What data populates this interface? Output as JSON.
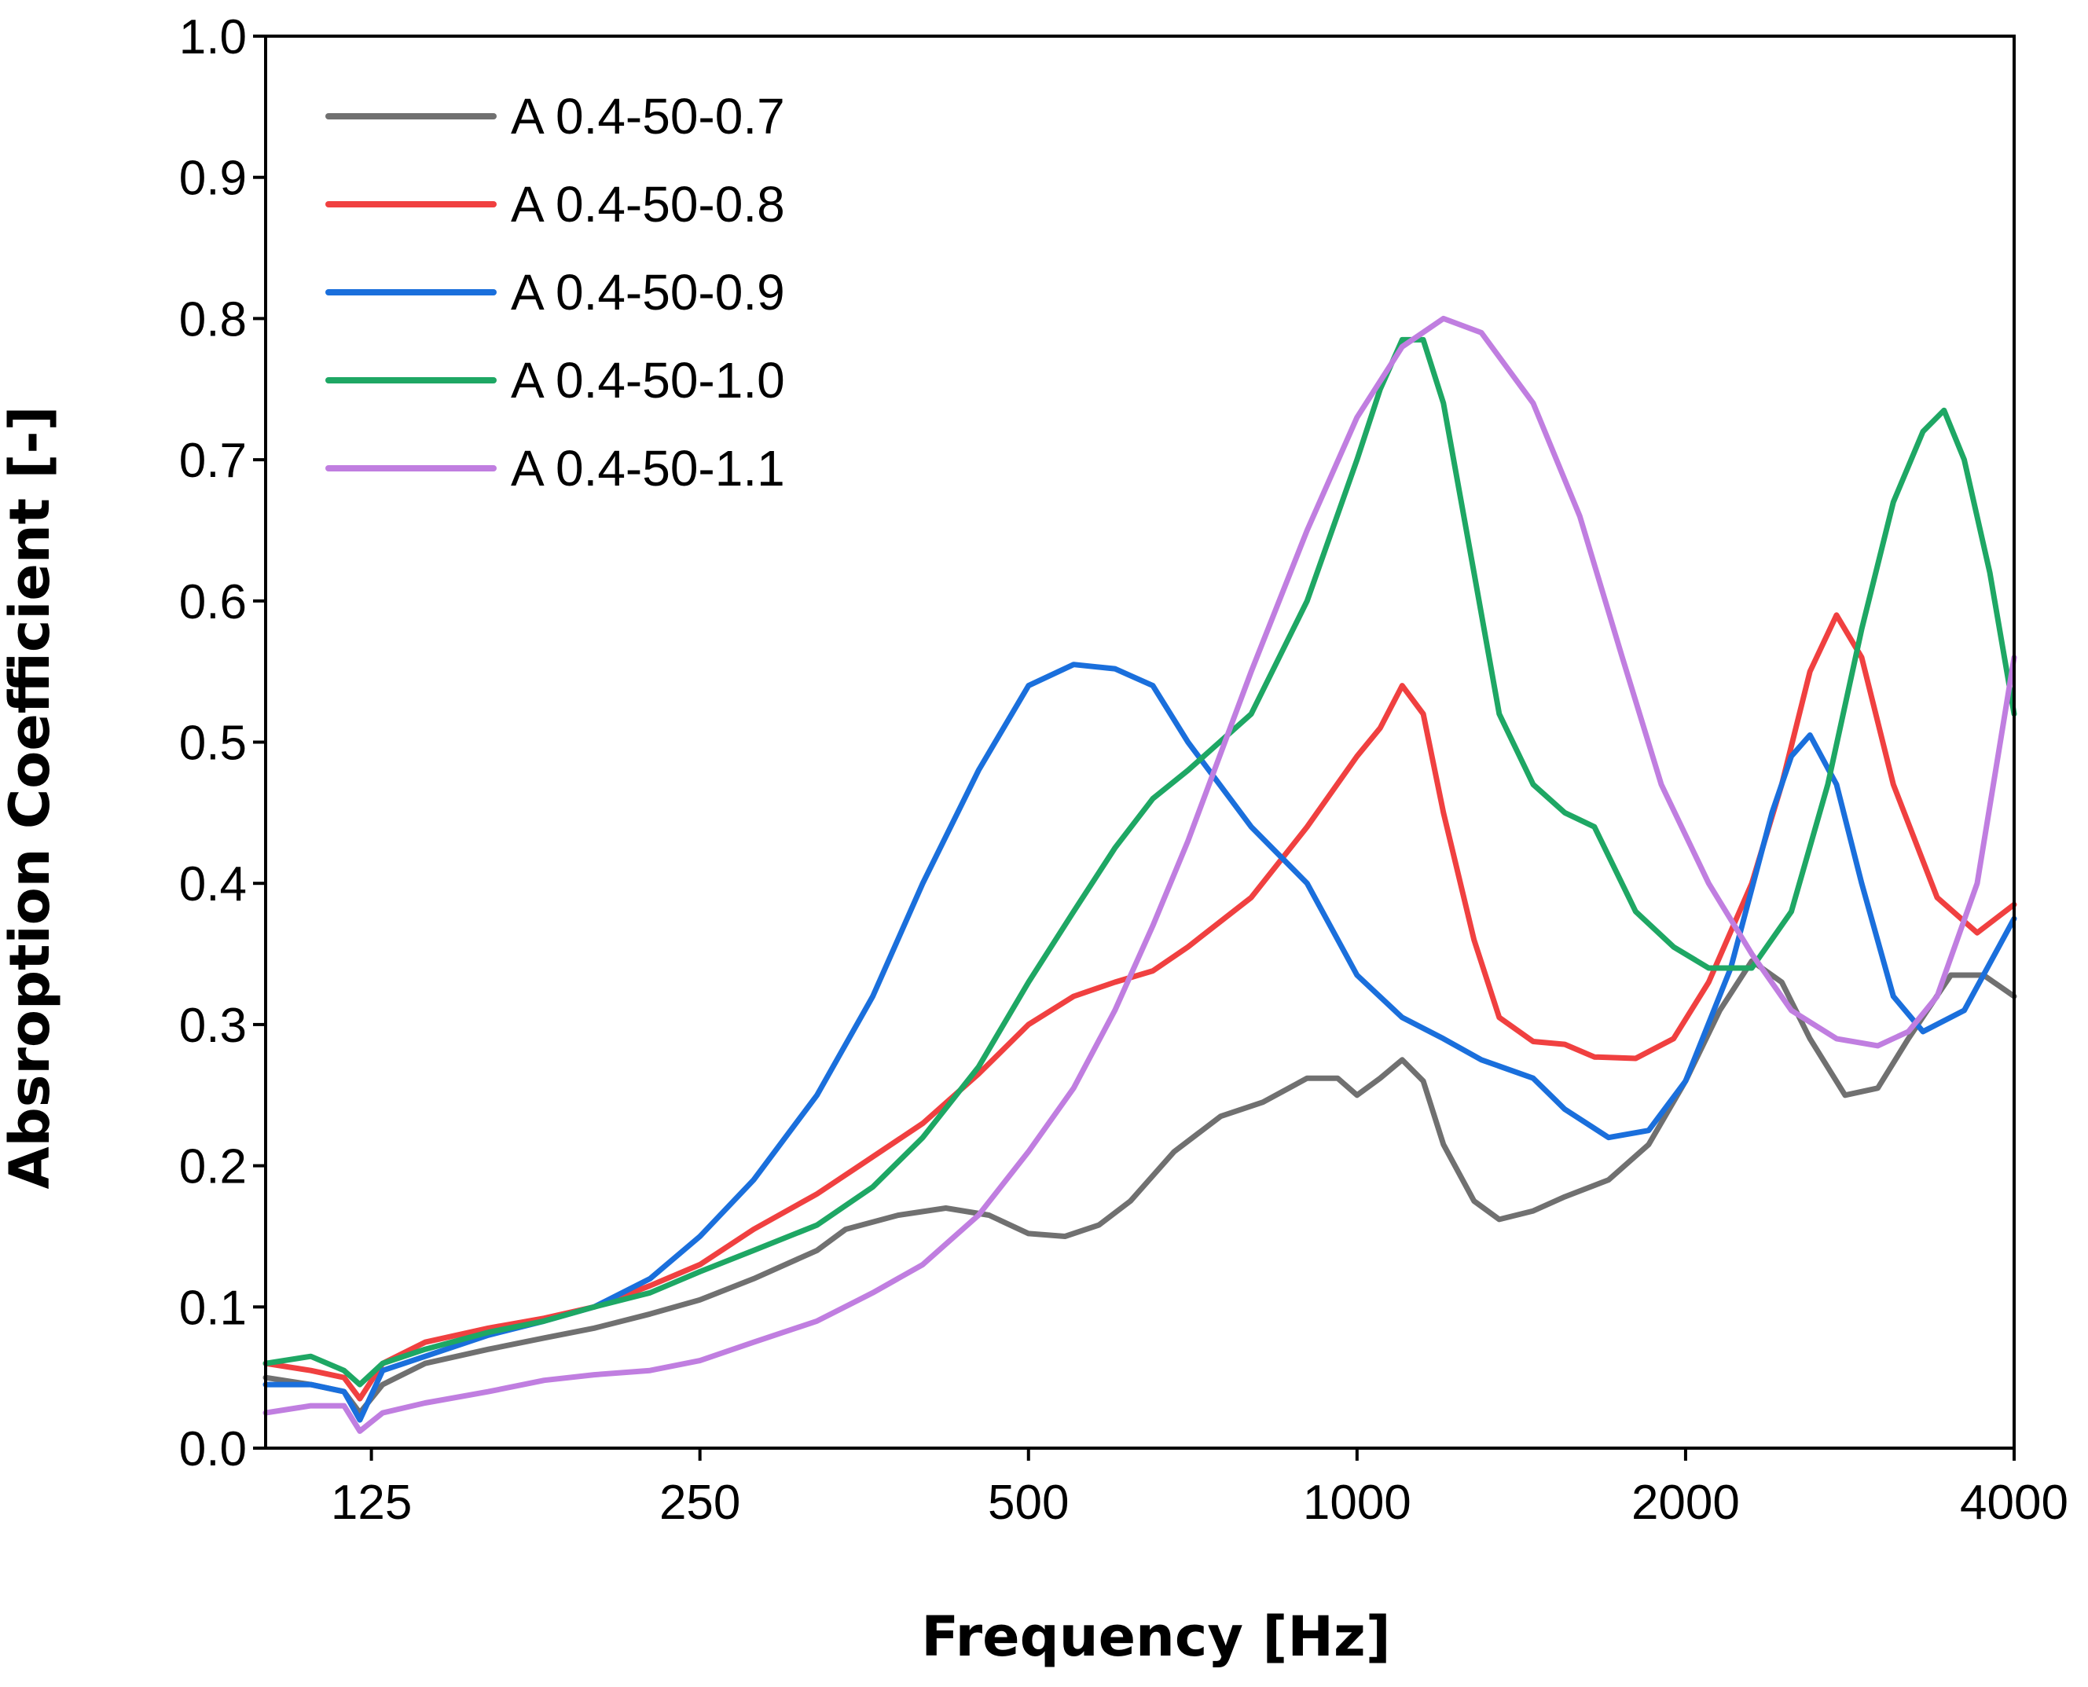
{
  "chart_data": {
    "type": "line",
    "title": "",
    "xlabel": "Frequency [Hz]",
    "ylabel": "Absroption Coefficient [-]",
    "xscale": "log2",
    "xlim": [
      100,
      4000
    ],
    "ylim": [
      0.0,
      1.0
    ],
    "xticks": [
      125,
      250,
      500,
      1000,
      2000,
      4000
    ],
    "xtick_labels": [
      "125",
      "250",
      "500",
      "1000",
      "2000",
      "4000"
    ],
    "yticks": [
      0.0,
      0.1,
      0.2,
      0.3,
      0.4,
      0.5,
      0.6,
      0.7,
      0.8,
      0.9,
      1.0
    ],
    "ytick_labels": [
      "0.0",
      "0.1",
      "0.2",
      "0.3",
      "0.4",
      "0.5",
      "0.6",
      "0.7",
      "0.8",
      "0.9",
      "1.0"
    ],
    "grid": false,
    "legend_position": "top-left",
    "series": [
      {
        "name": "A 0.4-50-0.7",
        "color": "#707070",
        "points": [
          [
            100,
            0.05
          ],
          [
            110,
            0.045
          ],
          [
            118,
            0.04
          ],
          [
            122,
            0.025
          ],
          [
            128,
            0.045
          ],
          [
            140,
            0.06
          ],
          [
            160,
            0.07
          ],
          [
            180,
            0.078
          ],
          [
            200,
            0.085
          ],
          [
            225,
            0.095
          ],
          [
            250,
            0.105
          ],
          [
            280,
            0.12
          ],
          [
            320,
            0.14
          ],
          [
            340,
            0.155
          ],
          [
            380,
            0.165
          ],
          [
            420,
            0.17
          ],
          [
            460,
            0.165
          ],
          [
            500,
            0.152
          ],
          [
            540,
            0.15
          ],
          [
            580,
            0.158
          ],
          [
            620,
            0.175
          ],
          [
            680,
            0.21
          ],
          [
            750,
            0.235
          ],
          [
            820,
            0.245
          ],
          [
            900,
            0.262
          ],
          [
            960,
            0.262
          ],
          [
            1000,
            0.25
          ],
          [
            1050,
            0.262
          ],
          [
            1100,
            0.275
          ],
          [
            1150,
            0.26
          ],
          [
            1200,
            0.215
          ],
          [
            1280,
            0.175
          ],
          [
            1350,
            0.162
          ],
          [
            1450,
            0.168
          ],
          [
            1550,
            0.178
          ],
          [
            1700,
            0.19
          ],
          [
            1850,
            0.215
          ],
          [
            2000,
            0.26
          ],
          [
            2150,
            0.31
          ],
          [
            2300,
            0.345
          ],
          [
            2450,
            0.33
          ],
          [
            2600,
            0.29
          ],
          [
            2800,
            0.25
          ],
          [
            3000,
            0.255
          ],
          [
            3200,
            0.29
          ],
          [
            3500,
            0.335
          ],
          [
            3750,
            0.335
          ],
          [
            4000,
            0.32
          ]
        ]
      },
      {
        "name": "A 0.4-50-0.8",
        "color": "#f04040",
        "points": [
          [
            100,
            0.06
          ],
          [
            110,
            0.055
          ],
          [
            118,
            0.05
          ],
          [
            122,
            0.035
          ],
          [
            128,
            0.06
          ],
          [
            140,
            0.075
          ],
          [
            160,
            0.085
          ],
          [
            180,
            0.092
          ],
          [
            200,
            0.1
          ],
          [
            225,
            0.115
          ],
          [
            250,
            0.13
          ],
          [
            280,
            0.155
          ],
          [
            320,
            0.18
          ],
          [
            350,
            0.2
          ],
          [
            400,
            0.23
          ],
          [
            450,
            0.265
          ],
          [
            500,
            0.3
          ],
          [
            550,
            0.32
          ],
          [
            600,
            0.33
          ],
          [
            650,
            0.338
          ],
          [
            700,
            0.355
          ],
          [
            800,
            0.39
          ],
          [
            900,
            0.44
          ],
          [
            1000,
            0.49
          ],
          [
            1050,
            0.51
          ],
          [
            1100,
            0.54
          ],
          [
            1150,
            0.52
          ],
          [
            1200,
            0.45
          ],
          [
            1280,
            0.36
          ],
          [
            1350,
            0.305
          ],
          [
            1450,
            0.288
          ],
          [
            1550,
            0.286
          ],
          [
            1650,
            0.277
          ],
          [
            1800,
            0.276
          ],
          [
            1950,
            0.29
          ],
          [
            2100,
            0.33
          ],
          [
            2300,
            0.4
          ],
          [
            2450,
            0.47
          ],
          [
            2600,
            0.55
          ],
          [
            2750,
            0.59
          ],
          [
            2900,
            0.56
          ],
          [
            3100,
            0.47
          ],
          [
            3400,
            0.39
          ],
          [
            3700,
            0.365
          ],
          [
            4000,
            0.385
          ]
        ]
      },
      {
        "name": "A 0.4-50-0.9",
        "color": "#1a6fdc",
        "points": [
          [
            100,
            0.045
          ],
          [
            110,
            0.045
          ],
          [
            118,
            0.04
          ],
          [
            122,
            0.02
          ],
          [
            128,
            0.055
          ],
          [
            140,
            0.065
          ],
          [
            160,
            0.08
          ],
          [
            180,
            0.09
          ],
          [
            200,
            0.1
          ],
          [
            225,
            0.12
          ],
          [
            250,
            0.15
          ],
          [
            280,
            0.19
          ],
          [
            320,
            0.25
          ],
          [
            360,
            0.32
          ],
          [
            400,
            0.4
          ],
          [
            450,
            0.48
          ],
          [
            500,
            0.54
          ],
          [
            550,
            0.555
          ],
          [
            600,
            0.552
          ],
          [
            650,
            0.54
          ],
          [
            700,
            0.5
          ],
          [
            800,
            0.44
          ],
          [
            900,
            0.4
          ],
          [
            1000,
            0.335
          ],
          [
            1100,
            0.305
          ],
          [
            1200,
            0.29
          ],
          [
            1300,
            0.275
          ],
          [
            1450,
            0.262
          ],
          [
            1550,
            0.24
          ],
          [
            1700,
            0.22
          ],
          [
            1850,
            0.225
          ],
          [
            2000,
            0.26
          ],
          [
            2200,
            0.34
          ],
          [
            2400,
            0.45
          ],
          [
            2500,
            0.49
          ],
          [
            2600,
            0.505
          ],
          [
            2750,
            0.47
          ],
          [
            2900,
            0.4
          ],
          [
            3100,
            0.32
          ],
          [
            3300,
            0.295
          ],
          [
            3600,
            0.31
          ],
          [
            4000,
            0.375
          ]
        ]
      },
      {
        "name": "A 0.4-50-1.0",
        "color": "#1ea764",
        "points": [
          [
            100,
            0.06
          ],
          [
            110,
            0.065
          ],
          [
            118,
            0.055
          ],
          [
            122,
            0.045
          ],
          [
            128,
            0.06
          ],
          [
            140,
            0.07
          ],
          [
            160,
            0.082
          ],
          [
            180,
            0.09
          ],
          [
            200,
            0.1
          ],
          [
            225,
            0.11
          ],
          [
            250,
            0.125
          ],
          [
            280,
            0.14
          ],
          [
            320,
            0.158
          ],
          [
            360,
            0.185
          ],
          [
            400,
            0.22
          ],
          [
            450,
            0.27
          ],
          [
            500,
            0.33
          ],
          [
            550,
            0.38
          ],
          [
            600,
            0.425
          ],
          [
            650,
            0.46
          ],
          [
            700,
            0.48
          ],
          [
            800,
            0.52
          ],
          [
            900,
            0.6
          ],
          [
            1000,
            0.7
          ],
          [
            1050,
            0.75
          ],
          [
            1100,
            0.785
          ],
          [
            1150,
            0.785
          ],
          [
            1200,
            0.74
          ],
          [
            1280,
            0.62
          ],
          [
            1350,
            0.52
          ],
          [
            1450,
            0.47
          ],
          [
            1550,
            0.45
          ],
          [
            1650,
            0.44
          ],
          [
            1800,
            0.38
          ],
          [
            1950,
            0.355
          ],
          [
            2100,
            0.34
          ],
          [
            2300,
            0.34
          ],
          [
            2500,
            0.38
          ],
          [
            2700,
            0.47
          ],
          [
            2900,
            0.58
          ],
          [
            3100,
            0.67
          ],
          [
            3300,
            0.72
          ],
          [
            3450,
            0.735
          ],
          [
            3600,
            0.7
          ],
          [
            3800,
            0.62
          ],
          [
            4000,
            0.52
          ]
        ]
      },
      {
        "name": "A 0.4-50-1.1",
        "color": "#c07ee0",
        "points": [
          [
            100,
            0.025
          ],
          [
            110,
            0.03
          ],
          [
            118,
            0.03
          ],
          [
            122,
            0.012
          ],
          [
            128,
            0.025
          ],
          [
            140,
            0.032
          ],
          [
            160,
            0.04
          ],
          [
            180,
            0.048
          ],
          [
            200,
            0.052
          ],
          [
            225,
            0.055
          ],
          [
            250,
            0.062
          ],
          [
            280,
            0.075
          ],
          [
            320,
            0.09
          ],
          [
            360,
            0.11
          ],
          [
            400,
            0.13
          ],
          [
            450,
            0.165
          ],
          [
            500,
            0.21
          ],
          [
            550,
            0.255
          ],
          [
            600,
            0.31
          ],
          [
            650,
            0.37
          ],
          [
            700,
            0.43
          ],
          [
            800,
            0.55
          ],
          [
            900,
            0.65
          ],
          [
            1000,
            0.73
          ],
          [
            1100,
            0.78
          ],
          [
            1200,
            0.8
          ],
          [
            1300,
            0.79
          ],
          [
            1450,
            0.74
          ],
          [
            1600,
            0.66
          ],
          [
            1750,
            0.56
          ],
          [
            1900,
            0.47
          ],
          [
            2100,
            0.4
          ],
          [
            2300,
            0.35
          ],
          [
            2500,
            0.31
          ],
          [
            2750,
            0.29
          ],
          [
            3000,
            0.285
          ],
          [
            3200,
            0.295
          ],
          [
            3400,
            0.32
          ],
          [
            3700,
            0.4
          ],
          [
            4000,
            0.56
          ]
        ]
      }
    ]
  }
}
